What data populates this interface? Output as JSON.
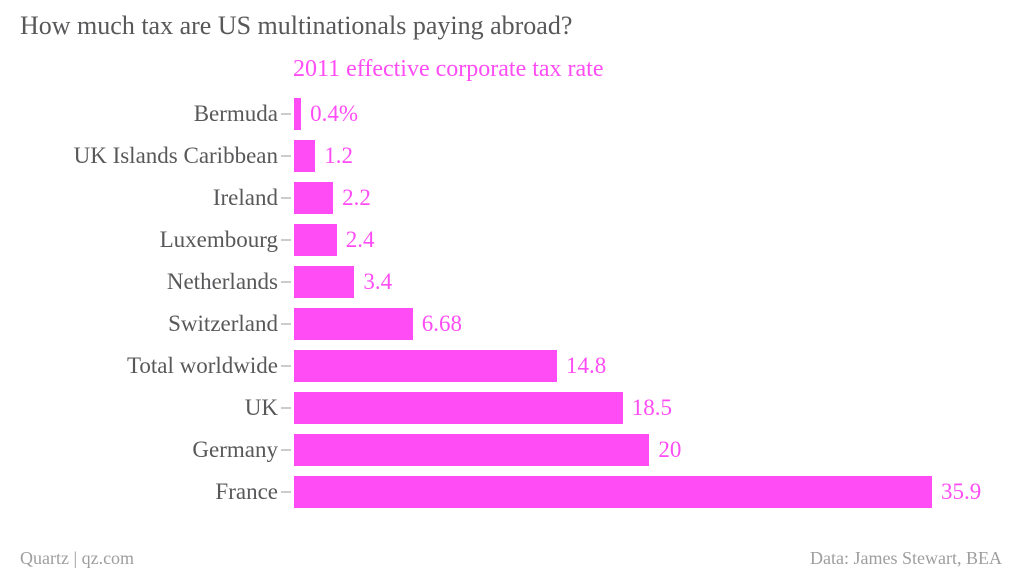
{
  "page": {
    "footer_left": "Quartz | qz.com",
    "footer_right": "Data: James Stewart, BEA"
  },
  "chart_data": {
    "type": "bar",
    "orientation": "horizontal",
    "title": "How much tax are US multinationals paying abroad?",
    "subtitle": "2011 effective corporate tax rate",
    "categories": [
      "Bermuda",
      "UK Islands Caribbean",
      "Ireland",
      "Luxembourg",
      "Netherlands",
      "Switzerland",
      "Total worldwide",
      "UK",
      "Germany",
      "France"
    ],
    "values": [
      0.4,
      1.2,
      2.2,
      2.4,
      3.4,
      6.68,
      14.8,
      18.5,
      20,
      35.9
    ],
    "value_labels": [
      "0.4%",
      "1.2",
      "2.2",
      "2.4",
      "3.4",
      "6.68",
      "14.8",
      "18.5",
      "20",
      "35.9"
    ],
    "xlabel": "",
    "ylabel": "",
    "xlim": [
      0,
      35.9
    ],
    "grid": false,
    "legend": "none",
    "colors": {
      "bar": "#FF4CF4",
      "value_label": "#FF4CF4",
      "subtitle": "#FF4CF4",
      "category_label": "#58585A",
      "title": "#58585A",
      "axis_tick": "#CCCCCC",
      "footer": "#9E9E9E"
    }
  }
}
